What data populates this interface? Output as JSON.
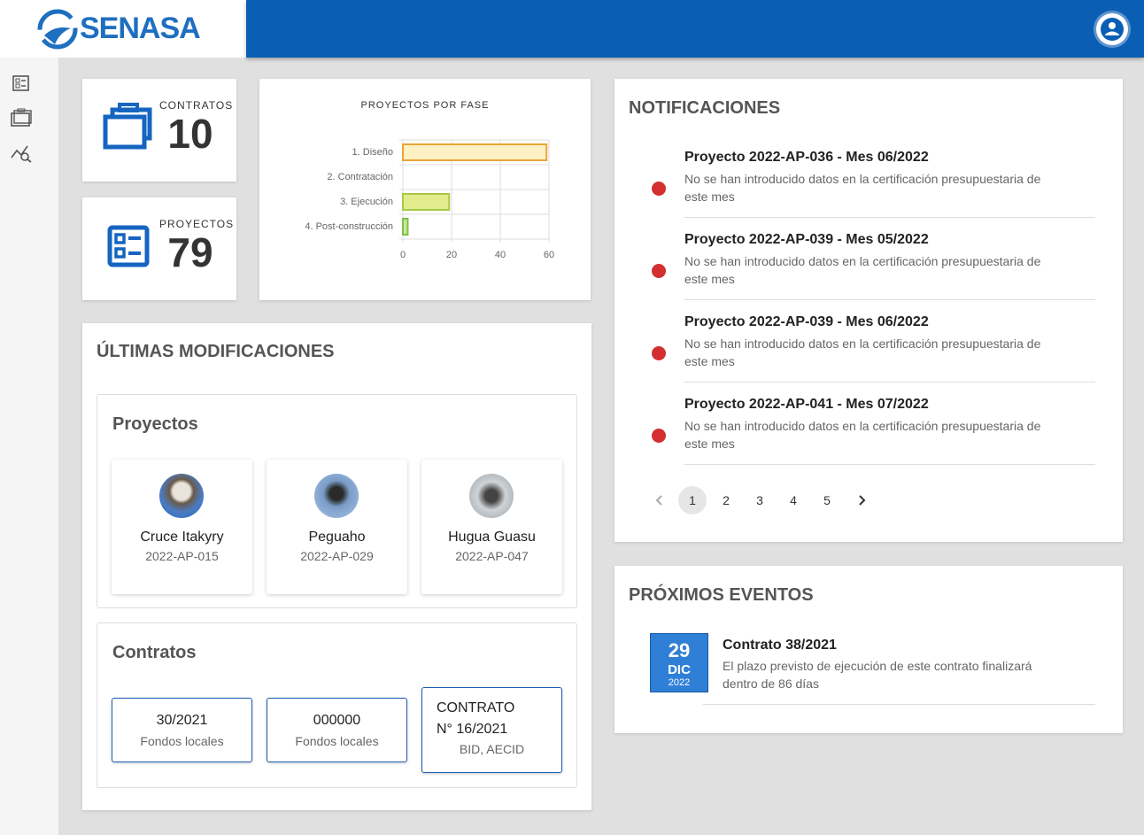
{
  "header": {
    "logo": "SENASA"
  },
  "stats": [
    {
      "label": "CONTRATOS",
      "value": 10
    },
    {
      "label": "PROYECTOS",
      "value": 79
    }
  ],
  "chart_data": {
    "type": "barh",
    "title": "PROYECTOS POR FASE",
    "categories": [
      "1. Diseño",
      "2. Contratación",
      "3. Ejecución",
      "4. Post-construcción"
    ],
    "values": [
      59,
      0,
      19,
      2
    ],
    "colors": [
      "#fdf0c2",
      "#fdf0c2",
      "#e3ec8c",
      "#c9e79b"
    ],
    "border_colors": [
      "#e8a536",
      "#e8a536",
      "#a9c84a",
      "#7cc04a"
    ],
    "xlim": [
      0,
      60
    ],
    "xticks": [
      0,
      20,
      40,
      60
    ],
    "grid": true
  },
  "modifications": {
    "title": "ÚLTIMAS MODIFICACIONES",
    "projects": {
      "title": "Proyectos",
      "items": [
        {
          "name": "Cruce Itakyry",
          "code": "2022-AP-015"
        },
        {
          "name": "Peguaho",
          "code": "2022-AP-029"
        },
        {
          "name": "Hugua Guasu",
          "code": "2022-AP-047"
        }
      ]
    },
    "contracts": {
      "title": "Contratos",
      "items": [
        {
          "name": "30/2021",
          "funding": "Fondos locales"
        },
        {
          "name": "000000",
          "funding": "Fondos locales"
        },
        {
          "name": "CONTRATO N° 16/2021",
          "funding": "BID, AECID"
        }
      ]
    }
  },
  "notifications": {
    "title": "NOTIFICACIONES",
    "items": [
      {
        "title": "Proyecto 2022-AP-036 - Mes 06/2022",
        "text": "No se han introducido datos en la certificación presupuestaria de este mes"
      },
      {
        "title": "Proyecto 2022-AP-039 - Mes 05/2022",
        "text": "No se han introducido datos en la certificación presupuestaria de este mes"
      },
      {
        "title": "Proyecto 2022-AP-039 - Mes 06/2022",
        "text": "No se han introducido datos en la certificación presupuestaria de este mes"
      },
      {
        "title": "Proyecto 2022-AP-041 - Mes 07/2022",
        "text": "No se han introducido datos en la certificación presupuestaria de este mes"
      }
    ],
    "pages": [
      1,
      2,
      3,
      4,
      5
    ],
    "current_page": 1
  },
  "events": {
    "title": "PRÓXIMOS EVENTOS",
    "items": [
      {
        "day": 29,
        "month": "DIC",
        "year": 2022,
        "title": "Contrato 38/2021",
        "text": "El plazo previsto de ejecución de este contrato finalizará dentro de 86 días"
      }
    ]
  }
}
